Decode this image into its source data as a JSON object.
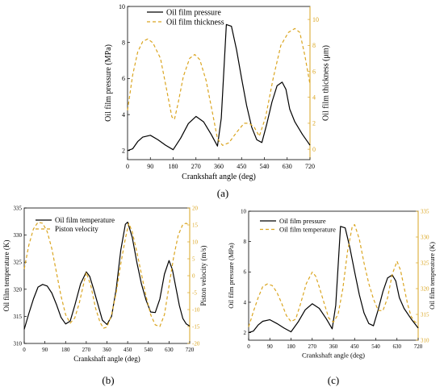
{
  "panels": [
    {
      "id": "a",
      "label": "(a)",
      "xlabel": "Crankshaft angle (deg)",
      "xlim": [
        0,
        720
      ],
      "xticks": [
        0,
        90,
        180,
        270,
        360,
        450,
        540,
        630,
        720
      ],
      "left_axis": {
        "label": "Oil film pressure (MPa)",
        "lim": [
          1.5,
          10
        ],
        "ticks": [
          2,
          4,
          6,
          8,
          10
        ],
        "color": "#000000"
      },
      "right_axis": {
        "label": "Oil film thickness (μm)",
        "lim": [
          -0.8,
          11
        ],
        "ticks": [
          0,
          2,
          4,
          6,
          8,
          10
        ],
        "color": "#DAA520"
      },
      "legend": [
        "Oil film pressure",
        "Oil film thickness"
      ]
    },
    {
      "id": "b",
      "label": "(b)",
      "xlabel": "Crankshaft angle (deg)",
      "xlim": [
        0,
        720
      ],
      "xticks": [
        0,
        90,
        180,
        270,
        360,
        450,
        540,
        630,
        720
      ],
      "left_axis": {
        "label": "Oil film temperature (K)",
        "lim": [
          310,
          335
        ],
        "ticks": [
          310,
          315,
          320,
          325,
          330,
          335
        ],
        "color": "#000000"
      },
      "right_axis": {
        "label": "Piston velocity (m/s)",
        "lim": [
          -20,
          20
        ],
        "ticks": [
          -20,
          -15,
          -10,
          -5,
          0,
          5,
          10,
          15,
          20
        ],
        "color": "#DAA520"
      },
      "legend": [
        "Oil film temperature",
        "Piston velocity"
      ]
    },
    {
      "id": "c",
      "label": "(c)",
      "xlabel": "Crankshaft angle (deg)",
      "xlim": [
        0,
        720
      ],
      "xticks": [
        0,
        90,
        180,
        270,
        360,
        450,
        540,
        630,
        720
      ],
      "left_axis": {
        "label": "Oil film pressure (MPa)",
        "lim": [
          1.5,
          10
        ],
        "ticks": [
          2,
          4,
          6,
          8,
          10
        ],
        "color": "#000000"
      },
      "right_axis": {
        "label": "Oil film temperature (K)",
        "lim": [
          310,
          335
        ],
        "ticks": [
          310,
          315,
          320,
          325,
          330,
          335
        ],
        "color": "#DAA520"
      },
      "legend": [
        "Oil film pressure",
        "Oil film temperature"
      ]
    }
  ],
  "chart_data": [
    {
      "type": "line",
      "panel": "a",
      "series": [
        {
          "name": "Oil film pressure",
          "axis": "left",
          "style": "solid",
          "points": [
            [
              0,
              2.0
            ],
            [
              20,
              2.1
            ],
            [
              40,
              2.5
            ],
            [
              60,
              2.75
            ],
            [
              90,
              2.85
            ],
            [
              120,
              2.6
            ],
            [
              150,
              2.3
            ],
            [
              180,
              2.05
            ],
            [
              210,
              2.7
            ],
            [
              240,
              3.5
            ],
            [
              270,
              3.9
            ],
            [
              300,
              3.6
            ],
            [
              330,
              2.9
            ],
            [
              355,
              2.25
            ],
            [
              370,
              3.8
            ],
            [
              390,
              9.0
            ],
            [
              410,
              8.9
            ],
            [
              430,
              7.6
            ],
            [
              450,
              6.0
            ],
            [
              470,
              4.5
            ],
            [
              490,
              3.3
            ],
            [
              510,
              2.6
            ],
            [
              530,
              2.45
            ],
            [
              550,
              3.5
            ],
            [
              570,
              4.7
            ],
            [
              590,
              5.6
            ],
            [
              610,
              5.8
            ],
            [
              625,
              5.4
            ],
            [
              640,
              4.3
            ],
            [
              660,
              3.6
            ],
            [
              690,
              2.9
            ],
            [
              720,
              2.3
            ]
          ]
        },
        {
          "name": "Oil film thickness",
          "axis": "right",
          "style": "dashed",
          "points": [
            [
              0,
              3.0
            ],
            [
              20,
              5.7
            ],
            [
              40,
              7.5
            ],
            [
              60,
              8.3
            ],
            [
              80,
              8.5
            ],
            [
              100,
              8.2
            ],
            [
              130,
              7.0
            ],
            [
              155,
              4.5
            ],
            [
              175,
              2.5
            ],
            [
              185,
              2.3
            ],
            [
              200,
              3.6
            ],
            [
              220,
              5.6
            ],
            [
              245,
              7.0
            ],
            [
              265,
              7.3
            ],
            [
              285,
              6.9
            ],
            [
              310,
              5.3
            ],
            [
              335,
              2.8
            ],
            [
              355,
              0.8
            ],
            [
              375,
              0.3
            ],
            [
              400,
              0.5
            ],
            [
              430,
              1.3
            ],
            [
              460,
              2.0
            ],
            [
              480,
              2.0
            ],
            [
              500,
              1.7
            ],
            [
              520,
              1.0
            ],
            [
              545,
              2.5
            ],
            [
              575,
              5.5
            ],
            [
              605,
              8.0
            ],
            [
              635,
              9.0
            ],
            [
              660,
              9.3
            ],
            [
              680,
              9.0
            ],
            [
              700,
              7.2
            ],
            [
              720,
              5.0
            ]
          ]
        }
      ]
    },
    {
      "type": "line",
      "panel": "b",
      "series": [
        {
          "name": "Oil film temperature",
          "axis": "left",
          "style": "solid",
          "points": [
            [
              0,
              312.6
            ],
            [
              20,
              315.5
            ],
            [
              40,
              318.2
            ],
            [
              60,
              320.4
            ],
            [
              80,
              320.9
            ],
            [
              100,
              320.6
            ],
            [
              120,
              319.3
            ],
            [
              140,
              317.2
            ],
            [
              160,
              314.8
            ],
            [
              180,
              313.6
            ],
            [
              200,
              314.1
            ],
            [
              220,
              317.0
            ],
            [
              245,
              321.0
            ],
            [
              270,
              323.2
            ],
            [
              285,
              322.4
            ],
            [
              300,
              320.3
            ],
            [
              320,
              317.3
            ],
            [
              340,
              314.3
            ],
            [
              360,
              313.5
            ],
            [
              380,
              315.0
            ],
            [
              400,
              320.0
            ],
            [
              420,
              327.2
            ],
            [
              440,
              332.0
            ],
            [
              450,
              332.4
            ],
            [
              470,
              329.6
            ],
            [
              490,
              325.0
            ],
            [
              510,
              321.0
            ],
            [
              530,
              318.0
            ],
            [
              550,
              315.8
            ],
            [
              570,
              315.7
            ],
            [
              590,
              318.2
            ],
            [
              610,
              322.8
            ],
            [
              630,
              325.3
            ],
            [
              645,
              323.6
            ],
            [
              660,
              320.3
            ],
            [
              675,
              317.0
            ],
            [
              690,
              314.6
            ],
            [
              705,
              313.6
            ],
            [
              720,
              313.2
            ]
          ]
        },
        {
          "name": "Piston velocity",
          "axis": "right",
          "style": "dashed",
          "points": [
            [
              0,
              2.0
            ],
            [
              20,
              9.0
            ],
            [
              40,
              13.8
            ],
            [
              60,
              15.8
            ],
            [
              80,
              15.5
            ],
            [
              100,
              13.0
            ],
            [
              120,
              8.0
            ],
            [
              140,
              1.0
            ],
            [
              160,
              -6.0
            ],
            [
              180,
              -11.5
            ],
            [
              200,
              -14.0
            ],
            [
              220,
              -12.5
            ],
            [
              240,
              -8.0
            ],
            [
              260,
              -2.0
            ],
            [
              270,
              1.0
            ],
            [
              290,
              -3.0
            ],
            [
              310,
              -9.5
            ],
            [
              330,
              -13.8
            ],
            [
              345,
              -15.5
            ],
            [
              360,
              -15.2
            ],
            [
              380,
              -11.5
            ],
            [
              400,
              -5.0
            ],
            [
              420,
              3.5
            ],
            [
              440,
              11.0
            ],
            [
              455,
              15.5
            ],
            [
              470,
              13.0
            ],
            [
              490,
              7.0
            ],
            [
              510,
              0.5
            ],
            [
              530,
              -6.0
            ],
            [
              550,
              -11.5
            ],
            [
              570,
              -14.5
            ],
            [
              590,
              -15.0
            ],
            [
              610,
              -11.5
            ],
            [
              630,
              -3.0
            ],
            [
              650,
              5.5
            ],
            [
              670,
              12.0
            ],
            [
              690,
              15.2
            ],
            [
              705,
              15.5
            ],
            [
              720,
              14.8
            ]
          ]
        }
      ]
    },
    {
      "type": "line",
      "panel": "c",
      "series": [
        {
          "name": "Oil film pressure",
          "axis": "left",
          "style": "solid",
          "points": [
            [
              0,
              2.0
            ],
            [
              20,
              2.1
            ],
            [
              40,
              2.5
            ],
            [
              60,
              2.75
            ],
            [
              90,
              2.85
            ],
            [
              120,
              2.6
            ],
            [
              150,
              2.3
            ],
            [
              180,
              2.05
            ],
            [
              210,
              2.7
            ],
            [
              240,
              3.5
            ],
            [
              270,
              3.9
            ],
            [
              300,
              3.6
            ],
            [
              330,
              2.9
            ],
            [
              355,
              2.25
            ],
            [
              370,
              3.8
            ],
            [
              390,
              9.0
            ],
            [
              410,
              8.9
            ],
            [
              430,
              7.6
            ],
            [
              450,
              6.0
            ],
            [
              470,
              4.5
            ],
            [
              490,
              3.3
            ],
            [
              510,
              2.6
            ],
            [
              530,
              2.45
            ],
            [
              550,
              3.5
            ],
            [
              570,
              4.7
            ],
            [
              590,
              5.6
            ],
            [
              610,
              5.8
            ],
            [
              625,
              5.4
            ],
            [
              640,
              4.3
            ],
            [
              660,
              3.6
            ],
            [
              690,
              2.9
            ],
            [
              720,
              2.3
            ]
          ]
        },
        {
          "name": "Oil film temperature",
          "axis": "right",
          "style": "dashed",
          "points": [
            [
              0,
              312.6
            ],
            [
              20,
              315.5
            ],
            [
              40,
              318.2
            ],
            [
              60,
              320.4
            ],
            [
              80,
              320.9
            ],
            [
              100,
              320.6
            ],
            [
              120,
              319.3
            ],
            [
              140,
              317.2
            ],
            [
              160,
              314.8
            ],
            [
              180,
              313.6
            ],
            [
              200,
              314.1
            ],
            [
              220,
              317.0
            ],
            [
              245,
              321.0
            ],
            [
              270,
              323.2
            ],
            [
              285,
              322.4
            ],
            [
              300,
              320.3
            ],
            [
              320,
              317.3
            ],
            [
              340,
              314.3
            ],
            [
              360,
              313.5
            ],
            [
              380,
              315.0
            ],
            [
              400,
              320.0
            ],
            [
              420,
              327.2
            ],
            [
              440,
              332.0
            ],
            [
              450,
              332.4
            ],
            [
              470,
              329.6
            ],
            [
              490,
              325.0
            ],
            [
              510,
              321.0
            ],
            [
              530,
              318.0
            ],
            [
              550,
              315.8
            ],
            [
              570,
              315.7
            ],
            [
              590,
              318.2
            ],
            [
              610,
              322.8
            ],
            [
              630,
              325.3
            ],
            [
              645,
              323.6
            ],
            [
              660,
              320.3
            ],
            [
              675,
              317.0
            ],
            [
              690,
              314.6
            ],
            [
              705,
              313.6
            ],
            [
              720,
              313.2
            ]
          ]
        }
      ]
    }
  ]
}
